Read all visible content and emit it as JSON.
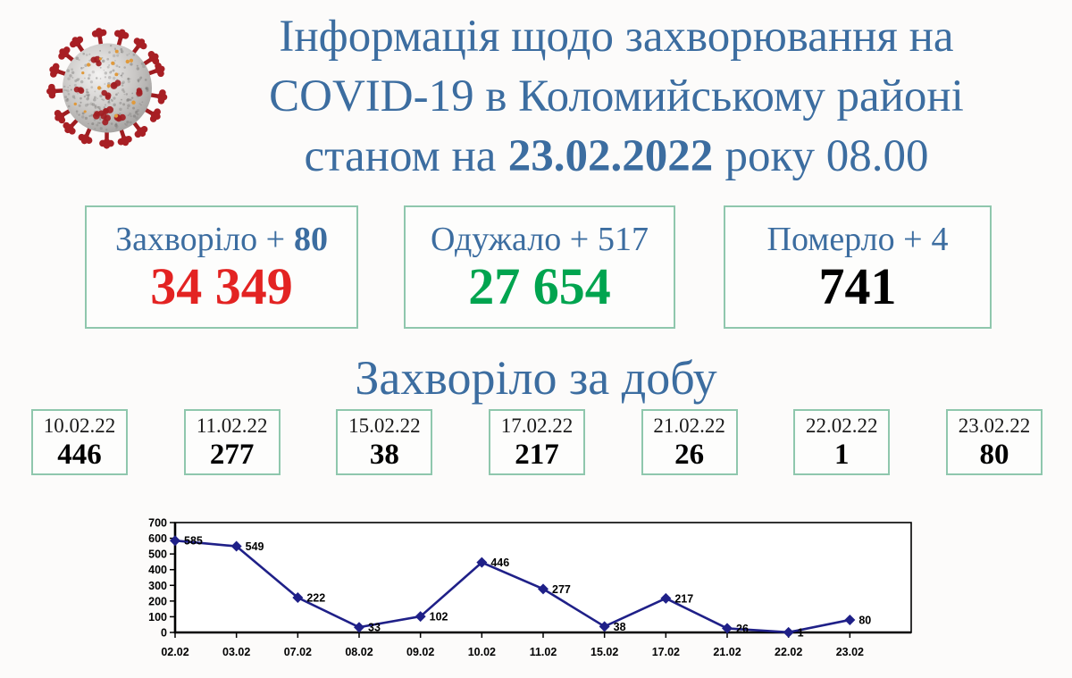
{
  "header": {
    "icon": "coronavirus-icon",
    "title_line1": "Інформація щодо захворювання на",
    "title_line2": "COVID-19 в Коломийському районі",
    "title_line3_prefix": "станом на",
    "title_line3_date": "23.02.2022",
    "title_line3_suffix": "року 08.00"
  },
  "summary_cards": [
    {
      "label_prefix": "Захворіло +",
      "label_value": "80",
      "total": "34 349"
    },
    {
      "label_prefix": "Одужало +",
      "label_value": "517",
      "total": "27 654"
    },
    {
      "label_prefix": "Померло +",
      "label_value": "4",
      "total": "741"
    }
  ],
  "daily_section": {
    "heading": "Захворіло за добу",
    "boxes": [
      {
        "date": "10.02.22",
        "value": "446"
      },
      {
        "date": "11.02.22",
        "value": "277"
      },
      {
        "date": "15.02.22",
        "value": "38"
      },
      {
        "date": "17.02.22",
        "value": "217"
      },
      {
        "date": "21.02.22",
        "value": "26"
      },
      {
        "date": "22.02.22",
        "value": "1"
      },
      {
        "date": "23.02.22",
        "value": "80"
      }
    ]
  },
  "chart_data": {
    "type": "line",
    "title": "",
    "x": [
      "02.02",
      "03.02",
      "07.02",
      "08.02",
      "09.02",
      "10.02",
      "11.02",
      "15.02",
      "17.02",
      "21.02",
      "22.02",
      "23.02"
    ],
    "values": [
      585,
      549,
      222,
      33,
      102,
      446,
      277,
      38,
      217,
      26,
      1,
      80
    ],
    "xlabel": "",
    "ylabel": "",
    "ylim": [
      0,
      700
    ],
    "ytick_step": 100,
    "grid": false,
    "legend": "none",
    "marker": "diamond",
    "data_labels": true,
    "line_color": "#1f2088"
  },
  "colors": {
    "title_blue": "#3c6da0",
    "infected_red": "#e32322",
    "recovered_green": "#00a44f",
    "deaths_black": "#000000",
    "box_border_green": "#8fc7ad",
    "chart_line_navy": "#1f2088"
  }
}
